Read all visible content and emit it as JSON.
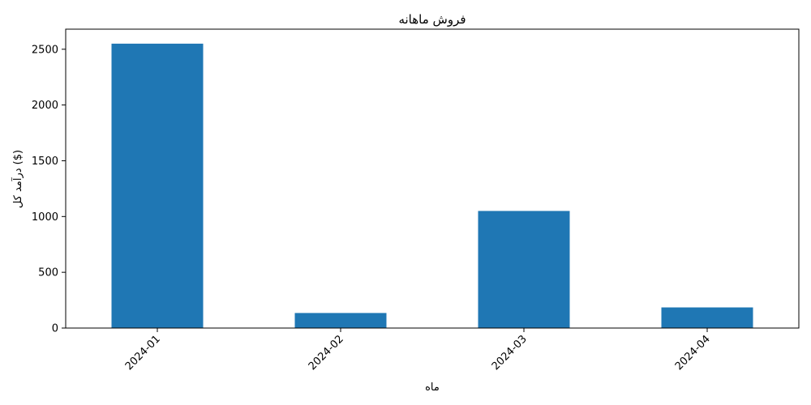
{
  "chart_data": {
    "type": "bar",
    "title": "فروش ماهانه",
    "xlabel": "ماه",
    "ylabel": "درآمد کل ($)",
    "categories": [
      "2024-01",
      "2024-02",
      "2024-03",
      "2024-04"
    ],
    "values": [
      2550,
      135,
      1050,
      185
    ],
    "ylim": [
      0,
      2680
    ],
    "yticks": [
      0,
      500,
      1000,
      1500,
      2000,
      2500
    ],
    "bar_color": "#1f77b4",
    "grid": false,
    "legend": "none"
  }
}
